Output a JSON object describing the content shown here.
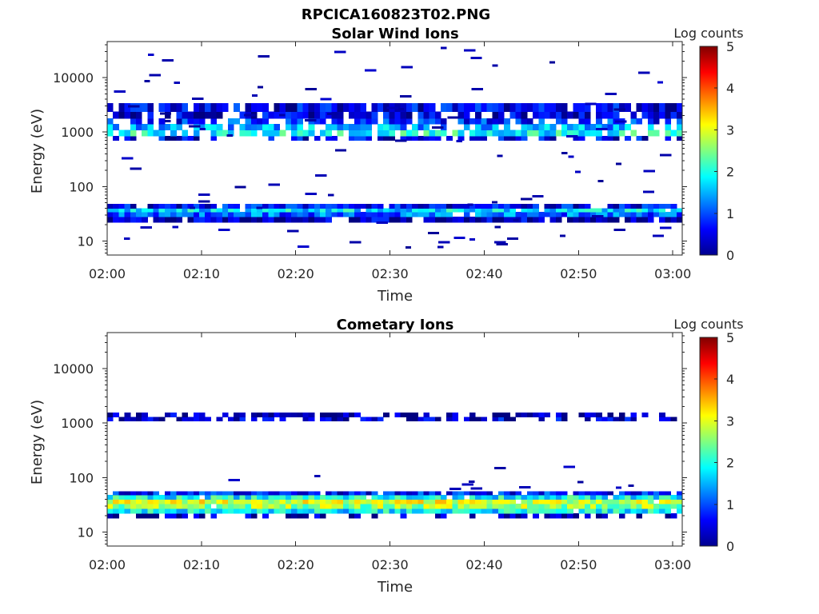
{
  "figure": {
    "title": "RPCICA160823T02.PNG"
  },
  "chart_data": [
    {
      "type": "heatmap",
      "title": "Solar Wind Ions",
      "xlabel": "Time",
      "ylabel": "Energy (eV)",
      "x_ticks": [
        "02:00",
        "02:10",
        "02:20",
        "02:30",
        "02:40",
        "02:50",
        "03:00"
      ],
      "xlim": [
        "02:00",
        "03:01"
      ],
      "y_scale": "log",
      "y_ticks": [
        "10",
        "100",
        "1000",
        "10000"
      ],
      "ylim": [
        5.5,
        46000
      ],
      "colorbar": {
        "label": "Log counts",
        "ticks": [
          "0",
          "1",
          "2",
          "3",
          "4",
          "5"
        ],
        "range": [
          0,
          5
        ],
        "colormap": "jet"
      },
      "bands": [
        {
          "energy": [
            22,
            28
          ],
          "value": 0.3,
          "coverage": 0.85
        },
        {
          "energy": [
            28,
            34
          ],
          "value": 1.1,
          "coverage": 0.95
        },
        {
          "energy": [
            34,
            40
          ],
          "value": 1.7,
          "coverage": 0.95
        },
        {
          "energy": [
            40,
            48
          ],
          "value": 0.6,
          "coverage": 0.9
        },
        {
          "energy": [
            700,
            850
          ],
          "value": 0.5,
          "coverage": 0.6
        },
        {
          "energy": [
            850,
            1100
          ],
          "value": 1.9,
          "coverage": 0.75
        },
        {
          "energy": [
            1100,
            1400
          ],
          "value": 1.4,
          "coverage": 0.75
        },
        {
          "energy": [
            1400,
            1800
          ],
          "value": 0.8,
          "coverage": 0.7
        },
        {
          "energy": [
            1800,
            2400
          ],
          "value": 0.4,
          "coverage": 0.8
        },
        {
          "energy": [
            2400,
            3400
          ],
          "value": 0.5,
          "coverage": 0.85
        }
      ],
      "speckle": {
        "energy_range": [
          8,
          40000
        ],
        "value": 0.1,
        "count": 95
      }
    },
    {
      "type": "heatmap",
      "title": "Cometary Ions",
      "xlabel": "Time",
      "ylabel": "Energy (eV)",
      "x_ticks": [
        "02:00",
        "02:10",
        "02:20",
        "02:30",
        "02:40",
        "02:50",
        "03:00"
      ],
      "xlim": [
        "02:00",
        "03:01"
      ],
      "y_scale": "log",
      "y_ticks": [
        "10",
        "100",
        "1000",
        "10000"
      ],
      "ylim": [
        5.5,
        46000
      ],
      "colorbar": {
        "label": "Log counts",
        "ticks": [
          "0",
          "1",
          "2",
          "3",
          "4",
          "5"
        ],
        "range": [
          0,
          5
        ],
        "colormap": "jet"
      },
      "bands": [
        {
          "energy": [
            18,
            22
          ],
          "value": 0.2,
          "coverage": 0.5
        },
        {
          "energy": [
            22,
            27
          ],
          "value": 1.8,
          "coverage": 0.97
        },
        {
          "energy": [
            27,
            33
          ],
          "value": 2.6,
          "coverage": 0.97
        },
        {
          "energy": [
            33,
            40
          ],
          "value": 2.9,
          "coverage": 0.97
        },
        {
          "energy": [
            40,
            48
          ],
          "value": 1.9,
          "coverage": 0.95
        },
        {
          "energy": [
            48,
            56
          ],
          "value": 0.7,
          "coverage": 0.9
        },
        {
          "energy": [
            1100,
            1300
          ],
          "value": 0.4,
          "coverage": 0.6
        },
        {
          "energy": [
            1300,
            1550
          ],
          "value": 0.2,
          "coverage": 0.55
        }
      ],
      "speckle": {
        "energy_range": [
          60,
          220
        ],
        "value": 0.1,
        "count": 12
      }
    }
  ]
}
